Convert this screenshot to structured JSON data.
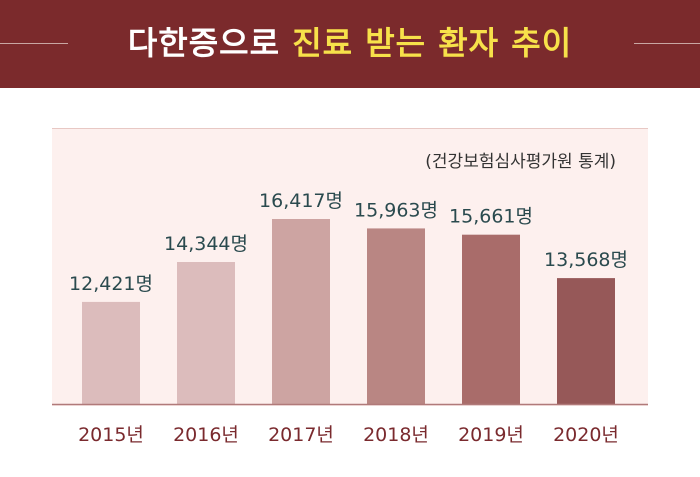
{
  "title": {
    "part1": "다한증으로 ",
    "part2": "진료 받는 환자 추이"
  },
  "source": "(건강보험심사평가원 통계)",
  "colors": {
    "header_bg": "#7b2a2c",
    "title_white": "#ffffff",
    "title_yellow": "#f7e14a",
    "panel_bg": "#fdf0ee",
    "axis": "#b07a7a",
    "value_text": "#2a4a4e",
    "category_text": "#7a2a2e",
    "bars": [
      "#dcbcbc",
      "#dcbcbc",
      "#cda4a2",
      "#b98683",
      "#a96c6a",
      "#965858"
    ]
  },
  "chart_data": {
    "type": "bar",
    "categories": [
      "2015년",
      "2016년",
      "2017년",
      "2018년",
      "2019년",
      "2020년"
    ],
    "values": [
      12421,
      14344,
      16417,
      15963,
      15661,
      13568
    ],
    "value_labels": [
      "12,421명",
      "14,344명",
      "16,417명",
      "15,963명",
      "15,661명",
      "13,568명"
    ],
    "ylim": [
      7500,
      17000
    ],
    "grid": false,
    "legend": "none"
  }
}
